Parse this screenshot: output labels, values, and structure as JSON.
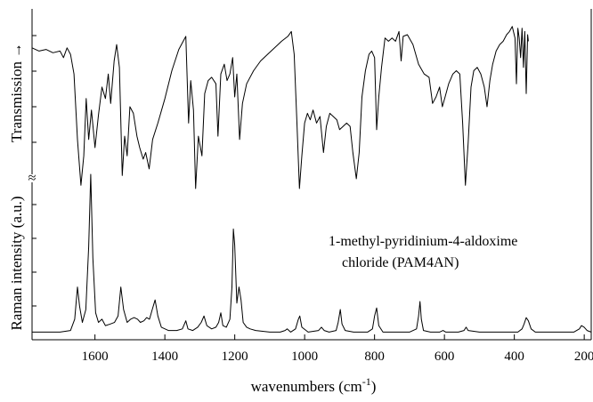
{
  "chart_data": {
    "type": "line",
    "xlabel": "wavenumbers (cm",
    "xlabel_sup": "-1",
    "xlabel_close": ")",
    "xlim": [
      1780,
      180
    ],
    "x_reversed": true,
    "xticks": [
      1600,
      1400,
      1200,
      1000,
      800,
      600,
      400,
      200
    ],
    "panels": [
      {
        "name": "ir",
        "ylabel": "Transmission",
        "ylabel_arrow": "→",
        "ylim": [
          0,
          1
        ],
        "points": [
          [
            1780,
            0.86
          ],
          [
            1760,
            0.84
          ],
          [
            1740,
            0.85
          ],
          [
            1720,
            0.83
          ],
          [
            1700,
            0.84
          ],
          [
            1690,
            0.8
          ],
          [
            1680,
            0.86
          ],
          [
            1670,
            0.82
          ],
          [
            1660,
            0.7
          ],
          [
            1650,
            0.3
          ],
          [
            1640,
            0.02
          ],
          [
            1632,
            0.2
          ],
          [
            1625,
            0.55
          ],
          [
            1618,
            0.3
          ],
          [
            1610,
            0.48
          ],
          [
            1600,
            0.25
          ],
          [
            1590,
            0.45
          ],
          [
            1580,
            0.62
          ],
          [
            1570,
            0.55
          ],
          [
            1562,
            0.7
          ],
          [
            1555,
            0.52
          ],
          [
            1545,
            0.78
          ],
          [
            1538,
            0.88
          ],
          [
            1530,
            0.74
          ],
          [
            1522,
            0.08
          ],
          [
            1515,
            0.32
          ],
          [
            1508,
            0.2
          ],
          [
            1500,
            0.5
          ],
          [
            1490,
            0.46
          ],
          [
            1480,
            0.32
          ],
          [
            1472,
            0.25
          ],
          [
            1462,
            0.18
          ],
          [
            1455,
            0.22
          ],
          [
            1445,
            0.12
          ],
          [
            1435,
            0.3
          ],
          [
            1420,
            0.4
          ],
          [
            1400,
            0.55
          ],
          [
            1380,
            0.72
          ],
          [
            1360,
            0.85
          ],
          [
            1340,
            0.93
          ],
          [
            1332,
            0.4
          ],
          [
            1326,
            0.66
          ],
          [
            1318,
            0.48
          ],
          [
            1312,
            0.0
          ],
          [
            1304,
            0.32
          ],
          [
            1294,
            0.2
          ],
          [
            1286,
            0.58
          ],
          [
            1276,
            0.66
          ],
          [
            1266,
            0.68
          ],
          [
            1254,
            0.64
          ],
          [
            1248,
            0.32
          ],
          [
            1240,
            0.7
          ],
          [
            1230,
            0.76
          ],
          [
            1222,
            0.66
          ],
          [
            1214,
            0.7
          ],
          [
            1206,
            0.8
          ],
          [
            1200,
            0.56
          ],
          [
            1194,
            0.7
          ],
          [
            1186,
            0.3
          ],
          [
            1178,
            0.52
          ],
          [
            1166,
            0.64
          ],
          [
            1146,
            0.72
          ],
          [
            1126,
            0.78
          ],
          [
            1106,
            0.82
          ],
          [
            1086,
            0.86
          ],
          [
            1066,
            0.9
          ],
          [
            1048,
            0.93
          ],
          [
            1038,
            0.96
          ],
          [
            1030,
            0.82
          ],
          [
            1022,
            0.4
          ],
          [
            1015,
            0.0
          ],
          [
            1008,
            0.2
          ],
          [
            1000,
            0.4
          ],
          [
            992,
            0.46
          ],
          [
            984,
            0.42
          ],
          [
            976,
            0.48
          ],
          [
            966,
            0.4
          ],
          [
            956,
            0.44
          ],
          [
            946,
            0.22
          ],
          [
            938,
            0.38
          ],
          [
            928,
            0.46
          ],
          [
            918,
            0.44
          ],
          [
            908,
            0.42
          ],
          [
            900,
            0.36
          ],
          [
            890,
            0.38
          ],
          [
            880,
            0.4
          ],
          [
            870,
            0.38
          ],
          [
            862,
            0.22
          ],
          [
            852,
            0.06
          ],
          [
            844,
            0.22
          ],
          [
            836,
            0.56
          ],
          [
            826,
            0.72
          ],
          [
            816,
            0.82
          ],
          [
            808,
            0.84
          ],
          [
            800,
            0.8
          ],
          [
            794,
            0.36
          ],
          [
            788,
            0.56
          ],
          [
            780,
            0.74
          ],
          [
            770,
            0.92
          ],
          [
            760,
            0.9
          ],
          [
            750,
            0.92
          ],
          [
            740,
            0.9
          ],
          [
            730,
            0.96
          ],
          [
            724,
            0.78
          ],
          [
            718,
            0.93
          ],
          [
            706,
            0.94
          ],
          [
            690,
            0.88
          ],
          [
            674,
            0.76
          ],
          [
            658,
            0.7
          ],
          [
            644,
            0.68
          ],
          [
            634,
            0.52
          ],
          [
            624,
            0.56
          ],
          [
            614,
            0.62
          ],
          [
            606,
            0.5
          ],
          [
            598,
            0.56
          ],
          [
            588,
            0.64
          ],
          [
            576,
            0.7
          ],
          [
            566,
            0.72
          ],
          [
            556,
            0.7
          ],
          [
            548,
            0.4
          ],
          [
            540,
            0.02
          ],
          [
            532,
            0.28
          ],
          [
            524,
            0.62
          ],
          [
            516,
            0.72
          ],
          [
            506,
            0.74
          ],
          [
            496,
            0.7
          ],
          [
            486,
            0.62
          ],
          [
            478,
            0.5
          ],
          [
            470,
            0.66
          ],
          [
            462,
            0.76
          ],
          [
            452,
            0.84
          ],
          [
            442,
            0.88
          ],
          [
            432,
            0.9
          ],
          [
            422,
            0.94
          ],
          [
            414,
            0.96
          ],
          [
            406,
            0.99
          ],
          [
            398,
            0.92
          ],
          [
            394,
            0.64
          ],
          [
            390,
            0.98
          ],
          [
            386,
            0.92
          ],
          [
            382,
            0.8
          ],
          [
            378,
            0.98
          ],
          [
            374,
            0.74
          ],
          [
            370,
            0.96
          ],
          [
            366,
            0.58
          ],
          [
            362,
            0.94
          ],
          [
            360,
            0.9
          ]
        ]
      },
      {
        "name": "raman",
        "ylabel": "Raman intensity (a.u.)",
        "ylim": [
          0,
          1
        ],
        "points": [
          [
            1780,
            0.02
          ],
          [
            1740,
            0.02
          ],
          [
            1700,
            0.02
          ],
          [
            1670,
            0.03
          ],
          [
            1658,
            0.1
          ],
          [
            1650,
            0.3
          ],
          [
            1644,
            0.18
          ],
          [
            1636,
            0.08
          ],
          [
            1626,
            0.16
          ],
          [
            1618,
            0.55
          ],
          [
            1612,
            1.0
          ],
          [
            1606,
            0.48
          ],
          [
            1598,
            0.14
          ],
          [
            1590,
            0.08
          ],
          [
            1580,
            0.1
          ],
          [
            1570,
            0.06
          ],
          [
            1556,
            0.07
          ],
          [
            1544,
            0.08
          ],
          [
            1534,
            0.12
          ],
          [
            1526,
            0.3
          ],
          [
            1518,
            0.16
          ],
          [
            1508,
            0.08
          ],
          [
            1498,
            0.1
          ],
          [
            1488,
            0.11
          ],
          [
            1478,
            0.1
          ],
          [
            1470,
            0.08
          ],
          [
            1460,
            0.09
          ],
          [
            1452,
            0.11
          ],
          [
            1444,
            0.1
          ],
          [
            1436,
            0.16
          ],
          [
            1428,
            0.22
          ],
          [
            1420,
            0.12
          ],
          [
            1410,
            0.05
          ],
          [
            1390,
            0.03
          ],
          [
            1366,
            0.03
          ],
          [
            1350,
            0.04
          ],
          [
            1340,
            0.09
          ],
          [
            1334,
            0.04
          ],
          [
            1320,
            0.03
          ],
          [
            1306,
            0.05
          ],
          [
            1296,
            0.08
          ],
          [
            1288,
            0.12
          ],
          [
            1280,
            0.06
          ],
          [
            1266,
            0.04
          ],
          [
            1254,
            0.05
          ],
          [
            1246,
            0.08
          ],
          [
            1240,
            0.14
          ],
          [
            1234,
            0.06
          ],
          [
            1224,
            0.05
          ],
          [
            1214,
            0.1
          ],
          [
            1208,
            0.3
          ],
          [
            1204,
            0.66
          ],
          [
            1200,
            0.56
          ],
          [
            1194,
            0.2
          ],
          [
            1188,
            0.3
          ],
          [
            1182,
            0.22
          ],
          [
            1176,
            0.08
          ],
          [
            1166,
            0.05
          ],
          [
            1156,
            0.04
          ],
          [
            1140,
            0.03
          ],
          [
            1100,
            0.02
          ],
          [
            1070,
            0.02
          ],
          [
            1056,
            0.03
          ],
          [
            1050,
            0.04
          ],
          [
            1040,
            0.02
          ],
          [
            1026,
            0.04
          ],
          [
            1018,
            0.1
          ],
          [
            1014,
            0.12
          ],
          [
            1008,
            0.05
          ],
          [
            990,
            0.02
          ],
          [
            960,
            0.03
          ],
          [
            952,
            0.05
          ],
          [
            944,
            0.03
          ],
          [
            930,
            0.02
          ],
          [
            910,
            0.03
          ],
          [
            904,
            0.08
          ],
          [
            898,
            0.16
          ],
          [
            893,
            0.07
          ],
          [
            884,
            0.03
          ],
          [
            860,
            0.02
          ],
          [
            820,
            0.02
          ],
          [
            806,
            0.04
          ],
          [
            800,
            0.12
          ],
          [
            794,
            0.17
          ],
          [
            788,
            0.06
          ],
          [
            776,
            0.02
          ],
          [
            740,
            0.02
          ],
          [
            700,
            0.02
          ],
          [
            680,
            0.04
          ],
          [
            674,
            0.12
          ],
          [
            670,
            0.21
          ],
          [
            666,
            0.1
          ],
          [
            660,
            0.03
          ],
          [
            640,
            0.02
          ],
          [
            614,
            0.02
          ],
          [
            604,
            0.03
          ],
          [
            596,
            0.02
          ],
          [
            560,
            0.02
          ],
          [
            544,
            0.03
          ],
          [
            538,
            0.05
          ],
          [
            532,
            0.03
          ],
          [
            500,
            0.02
          ],
          [
            460,
            0.02
          ],
          [
            420,
            0.02
          ],
          [
            390,
            0.02
          ],
          [
            378,
            0.04
          ],
          [
            372,
            0.07
          ],
          [
            366,
            0.11
          ],
          [
            360,
            0.09
          ],
          [
            352,
            0.04
          ],
          [
            340,
            0.02
          ],
          [
            300,
            0.02
          ],
          [
            260,
            0.02
          ],
          [
            230,
            0.02
          ],
          [
            214,
            0.04
          ],
          [
            208,
            0.06
          ],
          [
            200,
            0.05
          ],
          [
            192,
            0.03
          ],
          [
            180,
            0.02
          ]
        ]
      }
    ],
    "annotations": [
      "1-methyl-pyridinium-4-aldoxime",
      "chloride (PAM4AN)"
    ],
    "axis_break": "≈",
    "grid": false,
    "legend": "none"
  }
}
